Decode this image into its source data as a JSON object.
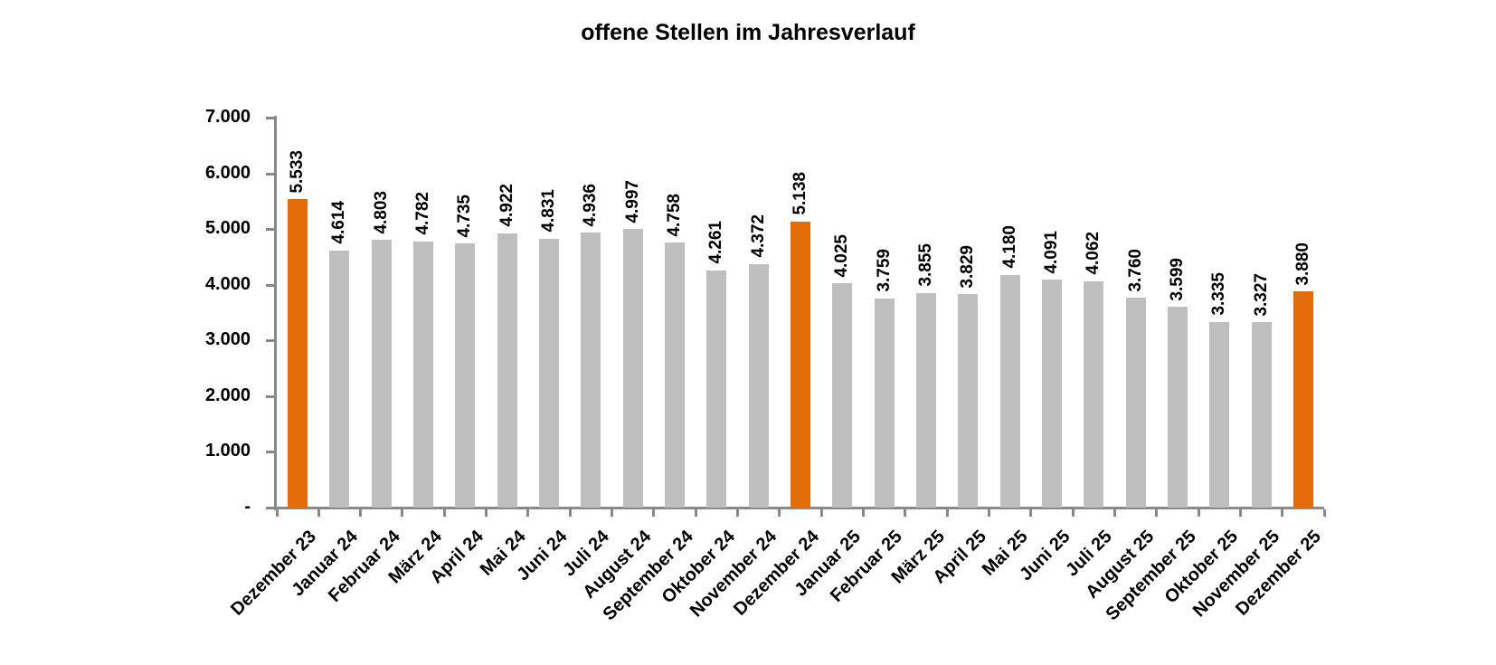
{
  "title": "offene Stellen im Jahresverlauf",
  "colors": {
    "bar_default": "#BFBFBF",
    "bar_highlight": "#E36C09",
    "axis": "#898989",
    "text": "#000000",
    "background": "#FFFFFF"
  },
  "chart_data": {
    "type": "bar",
    "title": "offene Stellen im Jahresverlauf",
    "xlabel": "",
    "ylabel": "",
    "ylim": [
      0,
      7000
    ],
    "ytick_step": 1000,
    "ytick_labels": [
      "-",
      "1.000",
      "2.000",
      "3.000",
      "4.000",
      "5.000",
      "6.000",
      "7.000"
    ],
    "grid": false,
    "legend": null,
    "categories": [
      "Dezember 23",
      "Januar 24",
      "Februar 24",
      "März 24",
      "April 24",
      "Mai 24",
      "Juni 24",
      "Juli 24",
      "August 24",
      "September 24",
      "Oktober 24",
      "November 24",
      "Dezember 24",
      "Januar 25",
      "Februar 25",
      "März 25",
      "April 25",
      "Mai 25",
      "Juni 25",
      "Juli 25",
      "August 25",
      "September 25",
      "Oktober 25",
      "November 25",
      "Dezember 25"
    ],
    "values": [
      5533,
      4614,
      4803,
      4782,
      4735,
      4922,
      4831,
      4936,
      4997,
      4758,
      4261,
      4372,
      5138,
      4025,
      3759,
      3855,
      3829,
      4180,
      4091,
      4062,
      3760,
      3599,
      3335,
      3327,
      3880
    ],
    "value_labels": [
      "5.533",
      "4.614",
      "4.803",
      "4.782",
      "4.735",
      "4.922",
      "4.831",
      "4.936",
      "4.997",
      "4.758",
      "4.261",
      "4.372",
      "5.138",
      "4.025",
      "3.759",
      "3.855",
      "3.829",
      "4.180",
      "4.091",
      "4.062",
      "3.760",
      "3.599",
      "3.335",
      "3.327",
      "3.880"
    ],
    "highlight_indices": [
      0,
      12,
      24
    ]
  }
}
